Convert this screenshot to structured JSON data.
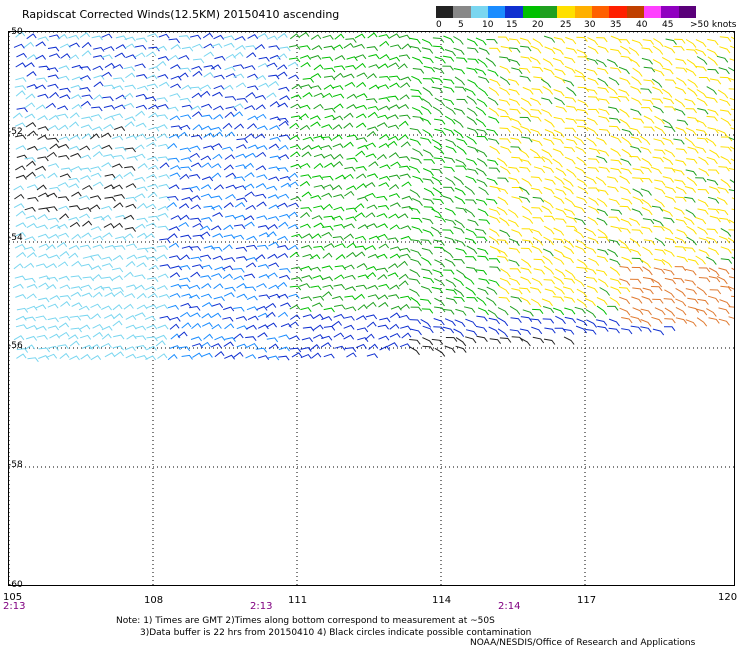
{
  "title": "Rapidscat Corrected Winds(12.5KM) 20150410 ascending",
  "legend": {
    "labels": [
      "0",
      "5",
      "10",
      "15",
      "20",
      "25",
      "30",
      "35",
      "40",
      "45",
      ">50 knots"
    ],
    "colors": [
      "#222222",
      "#888888",
      "#7ad6f0",
      "#1a8cff",
      "#1030d0",
      "#00c000",
      "#20a020",
      "#ffe000",
      "#ffb000",
      "#ff6000",
      "#ff2000",
      "#c04000",
      "#ff40ff",
      "#9000c0",
      "#5a007a"
    ]
  },
  "lat_labels": [
    "-50",
    "-52",
    "-54",
    "-56",
    "-58",
    "-60"
  ],
  "lon_labels": [
    "105",
    "108",
    "111",
    "114",
    "117",
    "120"
  ],
  "time_labels": [
    "2:13",
    "2:13",
    "2:14"
  ],
  "notes": {
    "line1": "Note: 1) Times are GMT 2)Times along bottom correspond to measurement at ~50S",
    "line2": "3)Data buffer is 22 hrs from 20150410 4) Black circles indicate possible contamination"
  },
  "credit": "NOAA/NESDIS/Office of Research and Applications"
}
